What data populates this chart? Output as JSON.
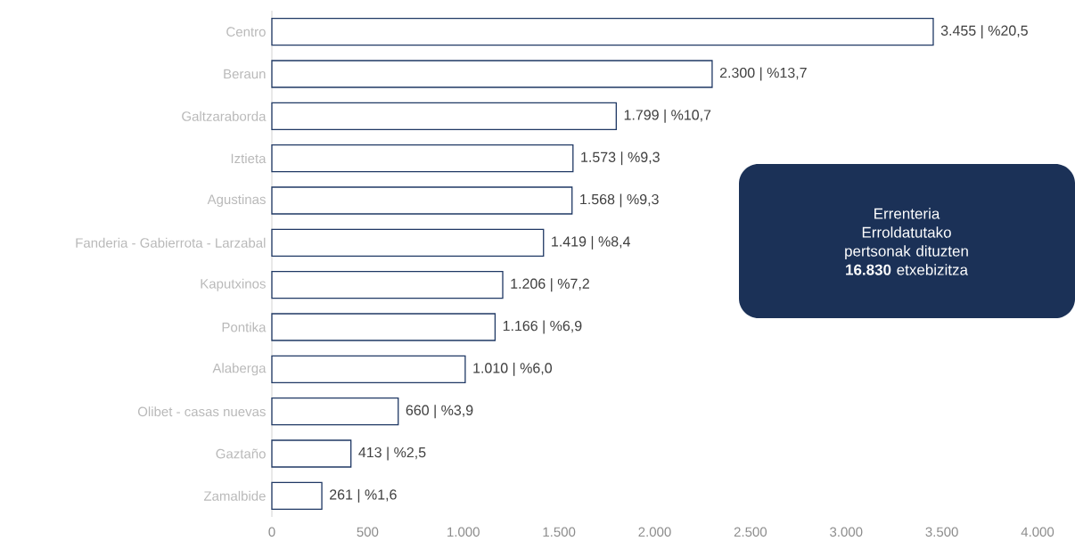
{
  "chart_data": {
    "type": "bar",
    "orientation": "horizontal",
    "color": "#1f3864",
    "categories": [
      "Centro",
      "Beraun",
      "Galtzaraborda",
      "Iztieta",
      "Agustinas",
      "Fanderia - Gabierrota - Larzabal",
      "Kaputxinos",
      "Pontika",
      "Alaberga",
      "Olibet - casas nuevas",
      "Gaztaño",
      "Zamalbide"
    ],
    "values": [
      3455,
      2300,
      1799,
      1573,
      1568,
      1419,
      1206,
      1166,
      1010,
      660,
      413,
      261
    ],
    "value_labels": [
      "3.455 | %20,5",
      "2.300 | %13,7",
      "1.799 | %10,7",
      "1.573 | %9,3",
      "1.568 | %9,3",
      "1.419 | %8,4",
      "1.206 | %7,2",
      "1.166 | %6,9",
      "1.010 | %6,0",
      "660 | %3,9",
      "413 | %2,5",
      "261 | %1,6"
    ],
    "xlim": [
      0,
      4000
    ],
    "xticks": [
      0,
      500,
      {
        "value": 1000,
        "label": "1.000"
      },
      {
        "value": 1500,
        "label": "1.500"
      },
      {
        "value": 2000,
        "label": "2.000"
      },
      {
        "value": 2500,
        "label": "2.500"
      },
      {
        "value": 3000,
        "label": "3.000"
      },
      {
        "value": 3500,
        "label": "3.500"
      },
      {
        "value": 4000,
        "label": "4.000"
      }
    ],
    "annotations": [
      "Errenteria",
      "Erroldatutako pertsonak dituzten **16.830** etxebizitza"
    ]
  }
}
